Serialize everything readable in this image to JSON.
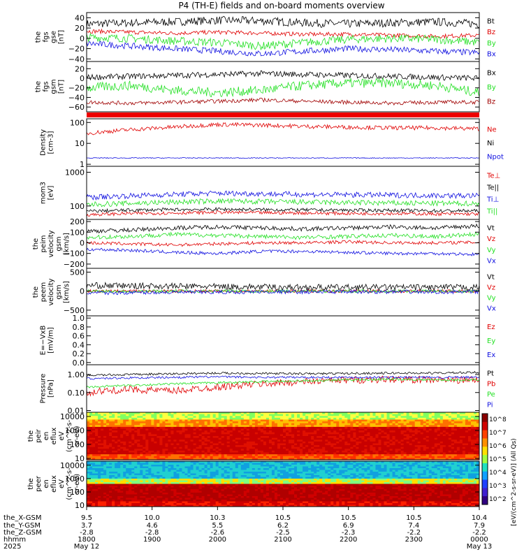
{
  "title": "P4 (TH-E) fields and on-board moments overview",
  "colors": {
    "black": "#000000",
    "red": "#e00000",
    "green": "#22e022",
    "blue": "#1010e0",
    "darkred": "#a00000",
    "magenta": "#d00000"
  },
  "time_axis": {
    "rows": [
      {
        "label": "the_X-GSM",
        "values": [
          "9.5",
          "10.0",
          "10.3",
          "10.5",
          "10.5",
          "10.5",
          "10.4"
        ]
      },
      {
        "label": "the_Y-GSM",
        "values": [
          "3.7",
          "4.6",
          "5.5",
          "6.2",
          "6.9",
          "7.4",
          "7.9"
        ]
      },
      {
        "label": "the_Z-GSM",
        "values": [
          "-2.8",
          "-2.8",
          "-2.6",
          "-2.5",
          "-2.3",
          "-2.2",
          "-2.2"
        ]
      },
      {
        "label": "hhmm",
        "values": [
          "1800",
          "1900",
          "2000",
          "2100",
          "2200",
          "2300",
          "0000"
        ]
      },
      {
        "label": "2025",
        "values": [
          "May 12",
          "",
          "",
          "",
          "",
          "",
          "May 13"
        ]
      }
    ]
  },
  "colorbar": {
    "label": "[eV/(cm^2-s-sr-eV)] (All Qs)",
    "ticks": [
      "10^8",
      "10^7",
      "10^6",
      "10^5",
      "10^4",
      "10^3",
      "10^2"
    ],
    "ticks2": [
      "10^8",
      "10^6",
      "10^4",
      "10^2"
    ]
  },
  "chart_data": [
    {
      "type": "line",
      "ylabel": [
        "the",
        "fgs",
        "gse",
        "[nT]"
      ],
      "ylim": [
        -45,
        50
      ],
      "yticks": [
        "40",
        "20",
        "0",
        "−20",
        "−40"
      ],
      "ytick_values": [
        40,
        20,
        0,
        -20,
        -40
      ],
      "legend": [
        "Bt",
        "Bz",
        "By",
        "Bx"
      ],
      "series": [
        {
          "name": "Bt",
          "base": [
            28,
            30,
            32,
            35,
            34,
            30,
            28,
            30,
            32,
            28
          ],
          "noise": 8
        },
        {
          "name": "Bz",
          "base": [
            14,
            12,
            10,
            12,
            10,
            8,
            8,
            6,
            4,
            6
          ],
          "noise": 4
        },
        {
          "name": "By",
          "base": [
            2,
            0,
            -5,
            -8,
            -15,
            -8,
            -2,
            0,
            -2,
            -8
          ],
          "noise": 8
        },
        {
          "name": "Bx",
          "base": [
            -10,
            -15,
            -20,
            -25,
            -30,
            -25,
            -20,
            -22,
            -25,
            -28
          ],
          "noise": 6
        }
      ]
    },
    {
      "type": "line",
      "ylabel": [
        "the",
        "fgs",
        "gsm",
        "[nT]"
      ],
      "ylim": [
        -70,
        35
      ],
      "yticks": [
        "20",
        "0",
        "−20",
        "−40",
        "−60"
      ],
      "ytick_values": [
        20,
        0,
        -20,
        -40,
        -60
      ],
      "legend": [
        "Bx",
        "By",
        "Bz"
      ],
      "series": [
        {
          "name": "Bx",
          "base": [
            2,
            4,
            6,
            8,
            10,
            8,
            6,
            4,
            2,
            0
          ],
          "noise": 6
        },
        {
          "name": "By",
          "base": [
            -20,
            -15,
            -25,
            -30,
            -25,
            -15,
            -10,
            -10,
            -15,
            -30
          ],
          "noise": 10
        },
        {
          "name": "Bz",
          "base": [
            -50,
            -52,
            -50,
            -48,
            -45,
            -48,
            -50,
            -52,
            -50,
            -50
          ],
          "noise": 4
        }
      ]
    },
    {
      "type": "line",
      "ylabel": [
        "Density",
        "[cm-3]"
      ],
      "scale": "log",
      "ylim": [
        0.8,
        150
      ],
      "yticks": [
        "100",
        "10",
        "1"
      ],
      "ytick_values": [
        100,
        10,
        1
      ],
      "legend": [
        "Ne",
        "Ni",
        "Npot"
      ],
      "series": [
        {
          "name": "Ne",
          "base": [
            30,
            45,
            60,
            80,
            75,
            65,
            60,
            55,
            55,
            50
          ],
          "noise": 0.1
        },
        {
          "name": "Npot",
          "base": [
            2,
            2,
            2,
            2,
            2,
            2,
            2,
            2,
            2,
            2
          ],
          "noise": 0.02
        }
      ]
    },
    {
      "type": "line",
      "ylabel": [
        "mom3",
        "[eV]"
      ],
      "scale": "log",
      "ylim": [
        40,
        1500
      ],
      "yticks": [
        "1000",
        "100"
      ],
      "ytick_values": [
        1000,
        100
      ],
      "legend": [
        "Te⊥",
        "Te||",
        "Ti⊥",
        "Ti||"
      ],
      "series": [
        {
          "name": "Te⊥",
          "base": [
            55,
            60,
            62,
            65,
            63,
            62,
            60,
            60,
            58,
            58
          ],
          "noise": 0.05
        },
        {
          "name": "Te||",
          "base": [
            70,
            75,
            78,
            80,
            78,
            76,
            75,
            74,
            72,
            72
          ],
          "noise": 0.05
        },
        {
          "name": "Ti⊥",
          "base": [
            180,
            200,
            220,
            240,
            230,
            220,
            215,
            210,
            205,
            200
          ],
          "noise": 0.08
        },
        {
          "name": "Ti||",
          "base": [
            110,
            120,
            130,
            140,
            135,
            130,
            125,
            122,
            120,
            118
          ],
          "noise": 0.08
        }
      ]
    },
    {
      "type": "line",
      "ylabel": [
        "the",
        "peim",
        "velocity",
        "gsm",
        "[km/s]"
      ],
      "ylim": [
        -240,
        220
      ],
      "yticks": [
        "200",
        "100",
        "0",
        "−100",
        "−200"
      ],
      "ytick_values": [
        200,
        100,
        0,
        -100,
        -200
      ],
      "legend": [
        "Vt",
        "Vz",
        "Vy",
        "Vx"
      ],
      "series": [
        {
          "name": "Vt",
          "base": [
            110,
            120,
            140,
            150,
            140,
            130,
            140,
            150,
            140,
            160
          ],
          "noise": 20
        },
        {
          "name": "Vz",
          "base": [
            0,
            -10,
            -20,
            -10,
            0,
            0,
            10,
            0,
            0,
            5
          ],
          "noise": 15
        },
        {
          "name": "Vy",
          "base": [
            50,
            60,
            80,
            70,
            60,
            50,
            60,
            70,
            60,
            80
          ],
          "noise": 20
        },
        {
          "name": "Vx",
          "base": [
            -60,
            -70,
            -90,
            -100,
            -80,
            -80,
            -90,
            -100,
            -100,
            -110
          ],
          "noise": 15
        }
      ]
    },
    {
      "type": "line",
      "ylabel": [
        "the",
        "peem",
        "velocity",
        "gsm",
        "[km/s]"
      ],
      "ylim": [
        -650,
        600
      ],
      "yticks": [
        "500",
        "0",
        "−500"
      ],
      "ytick_values": [
        500,
        0,
        -500
      ],
      "legend": [
        "Vt",
        "Vz",
        "Vy",
        "Vx"
      ],
      "series": [
        {
          "name": "Vt",
          "base": [
            150,
            140,
            130,
            120,
            110,
            100,
            100,
            100,
            100,
            100
          ],
          "noise": 80
        },
        {
          "name": "Vz",
          "base": [
            0,
            0,
            0,
            0,
            0,
            0,
            0,
            0,
            0,
            0
          ],
          "noise": 40
        },
        {
          "name": "Vy",
          "base": [
            0,
            0,
            0,
            0,
            0,
            0,
            0,
            0,
            0,
            0
          ],
          "noise": 40
        },
        {
          "name": "Vx",
          "base": [
            -50,
            -40,
            -30,
            -30,
            -20,
            -20,
            -20,
            -20,
            -20,
            -20
          ],
          "noise": 50
        }
      ]
    },
    {
      "type": "line",
      "ylabel": [
        "E=−VxB",
        "[mV/m]"
      ],
      "ylim": [
        -0.05,
        1.05
      ],
      "yticks": [
        "1.0",
        "0.8",
        "0.6",
        "0.4",
        "0.2",
        "0.0"
      ],
      "ytick_values": [
        1,
        0.8,
        0.6,
        0.4,
        0.2,
        0
      ],
      "legend": [
        "Ez",
        "Ey",
        "Ex"
      ],
      "series": []
    },
    {
      "type": "line",
      "ylabel": [
        "Pressure",
        "[nPa]"
      ],
      "scale": "log",
      "ylim": [
        0.008,
        3.5
      ],
      "yticks": [
        "1.00",
        "0.10",
        "0.01"
      ],
      "ytick_values": [
        1,
        0.1,
        0.01
      ],
      "legend": [
        "Pt",
        "Pb",
        "Pe",
        "Pi"
      ],
      "series": [
        {
          "name": "Pt",
          "base": [
            0.9,
            1.0,
            1.1,
            1.2,
            1.15,
            1.1,
            1.15,
            1.2,
            1.2,
            1.3
          ],
          "noise": 0.06
        },
        {
          "name": "Pb",
          "base": [
            0.1,
            0.15,
            0.12,
            0.2,
            0.3,
            0.4,
            0.5,
            0.55,
            0.5,
            0.5
          ],
          "noise": 0.2
        },
        {
          "name": "Pe",
          "base": [
            0.2,
            0.25,
            0.3,
            0.35,
            0.4,
            0.45,
            0.5,
            0.55,
            0.5,
            0.5
          ],
          "noise": 0.06
        },
        {
          "name": "Pi",
          "base": [
            0.6,
            0.65,
            0.7,
            0.75,
            0.7,
            0.7,
            0.7,
            0.7,
            0.7,
            0.7
          ],
          "noise": 0.06
        }
      ]
    },
    {
      "type": "heatmap",
      "ylabel": [
        "the",
        "peir",
        "en",
        "eflux",
        "eV",
        "(cm^2-s-",
        "sr-eV)"
      ],
      "scale": "log",
      "ylim": [
        8,
        20000
      ],
      "yticks": [
        "10000",
        "1000",
        "100",
        "10"
      ],
      "ytick_values": [
        10000,
        1000,
        100,
        10
      ]
    },
    {
      "type": "heatmap",
      "ylabel": [
        "the",
        "peer",
        "en",
        "eflux",
        "eV",
        "(cm^2-s-",
        "sr-eV)"
      ],
      "scale": "log",
      "ylim": [
        8,
        20000
      ],
      "yticks": [
        "10000",
        "1000",
        "100",
        "10"
      ],
      "ytick_values": [
        10000,
        1000,
        100,
        10
      ]
    }
  ]
}
